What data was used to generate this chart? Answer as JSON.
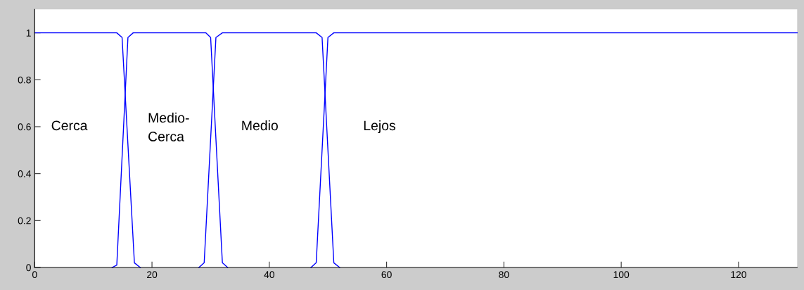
{
  "chart_data": {
    "type": "line",
    "xlim": [
      0,
      130
    ],
    "ylim": [
      0,
      1.1
    ],
    "xticks": [
      0,
      20,
      40,
      60,
      80,
      100,
      120
    ],
    "yticks": [
      0,
      0.2,
      0.4,
      0.6,
      0.8,
      1
    ],
    "grid": false,
    "legend": false,
    "marker": "none",
    "line_style": "solid",
    "series": [
      {
        "name": "Cerca",
        "color": "#0000ff",
        "x": [
          0,
          14,
          14.9,
          17,
          18
        ],
        "values": [
          1,
          1,
          0.98,
          0.02,
          0
        ]
      },
      {
        "name": "Medio-\nCerca",
        "color": "#0000ff",
        "x": [
          13.2,
          14,
          15.9,
          16.8,
          29.2,
          30,
          32,
          32.9
        ],
        "values": [
          0,
          0.01,
          0.98,
          1,
          1,
          0.98,
          0.02,
          0
        ]
      },
      {
        "name": "Medio",
        "color": "#0000ff",
        "x": [
          28,
          28.9,
          30.9,
          32,
          48,
          49,
          51,
          52
        ],
        "values": [
          0,
          0.02,
          0.98,
          1,
          1,
          0.98,
          0.02,
          0
        ]
      },
      {
        "name": "Lejos",
        "color": "#0000ff",
        "x": [
          47.1,
          48,
          50,
          51,
          130
        ],
        "values": [
          0,
          0.02,
          0.98,
          1,
          1
        ]
      }
    ]
  }
}
